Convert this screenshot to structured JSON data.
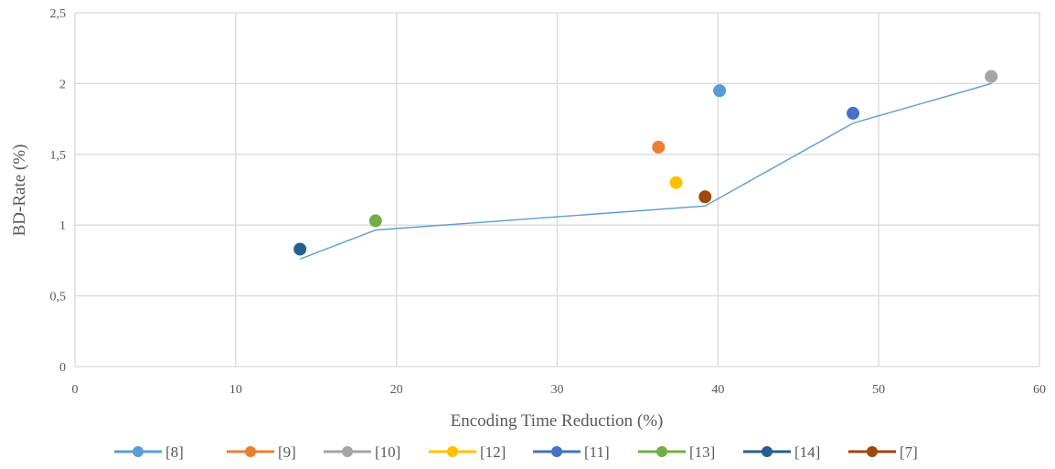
{
  "chart_data": {
    "type": "scatter",
    "title": "",
    "xlabel": "Encoding Time Reduction (%)",
    "ylabel": "BD-Rate (%)",
    "xlim": [
      0,
      60
    ],
    "ylim": [
      0,
      2.5
    ],
    "x_ticks": [
      0,
      10,
      20,
      30,
      40,
      50,
      60
    ],
    "x_tick_labels": [
      "0",
      "10",
      "20",
      "30",
      "40",
      "50",
      "60"
    ],
    "y_ticks": [
      0,
      0.5,
      1,
      1.5,
      2,
      2.5
    ],
    "y_tick_labels": [
      "0",
      "0,5",
      "1",
      "1,5",
      "2",
      "2,5"
    ],
    "grid": true,
    "legend_position": "bottom",
    "series": [
      {
        "name": "[8]",
        "color": "#5B9BD5",
        "x": [
          40.1
        ],
        "y": [
          1.95
        ]
      },
      {
        "name": "[9]",
        "color": "#ED7D31",
        "x": [
          36.3
        ],
        "y": [
          1.55
        ]
      },
      {
        "name": "[10]",
        "color": "#A5A5A5",
        "x": [
          57.0
        ],
        "y": [
          2.05
        ]
      },
      {
        "name": "[12]",
        "color": "#FFC000",
        "x": [
          37.4
        ],
        "y": [
          1.3
        ]
      },
      {
        "name": "[11]",
        "color": "#4472C4",
        "x": [
          48.4
        ],
        "y": [
          1.79
        ]
      },
      {
        "name": "[13]",
        "color": "#70AD47",
        "x": [
          18.7
        ],
        "y": [
          1.03
        ]
      },
      {
        "name": "[14]",
        "color": "#255E91",
        "x": [
          14.0
        ],
        "y": [
          0.83
        ]
      },
      {
        "name": "[7]",
        "color": "#9E480E",
        "x": [
          39.2
        ],
        "y": [
          1.2
        ]
      }
    ],
    "frontier_line": {
      "color": "#5B9BD5",
      "x": [
        14.0,
        18.7,
        39.2,
        48.4,
        57.0
      ],
      "y": [
        0.76,
        0.965,
        1.135,
        1.72,
        2.0
      ]
    }
  }
}
